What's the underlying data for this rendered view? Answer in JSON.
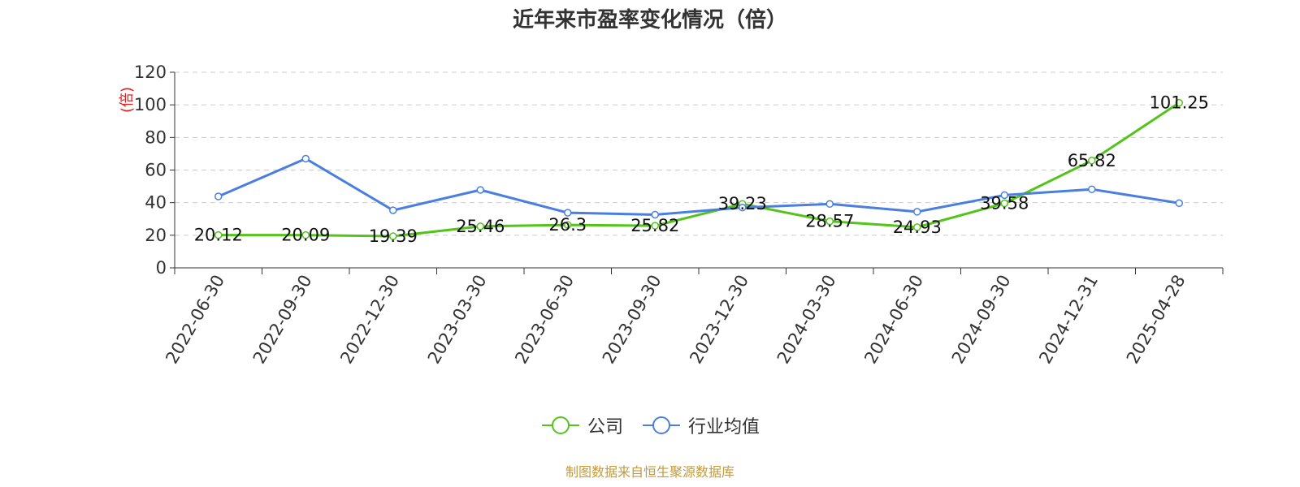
{
  "chart_data": {
    "type": "line",
    "title": "近年来市盈率变化情况（倍）",
    "ylabel": "(倍)",
    "xlabel": "",
    "categories": [
      "2022-06-30",
      "2022-09-30",
      "2022-12-30",
      "2023-03-30",
      "2023-06-30",
      "2023-09-30",
      "2023-12-30",
      "2024-03-30",
      "2024-06-30",
      "2024-09-30",
      "2024-12-31",
      "2025-04-28"
    ],
    "ylim": [
      0,
      120
    ],
    "yticks": [
      0,
      20,
      40,
      60,
      80,
      100,
      120
    ],
    "grid": true,
    "legend_position": "bottom",
    "series": [
      {
        "name": "公司",
        "color": "#52c41a",
        "labels": true,
        "values": [
          20.12,
          20.09,
          19.39,
          25.46,
          26.3,
          25.82,
          39.23,
          28.57,
          24.93,
          39.58,
          65.82,
          101.25
        ]
      },
      {
        "name": "行业均值",
        "color": "#4a7fe0",
        "labels": false,
        "values": [
          43.8,
          67.0,
          35.3,
          47.8,
          33.8,
          32.6,
          37.0,
          39.2,
          34.4,
          44.6,
          48.2,
          39.7
        ]
      }
    ]
  },
  "source": "制图数据来自恒生聚源数据库"
}
